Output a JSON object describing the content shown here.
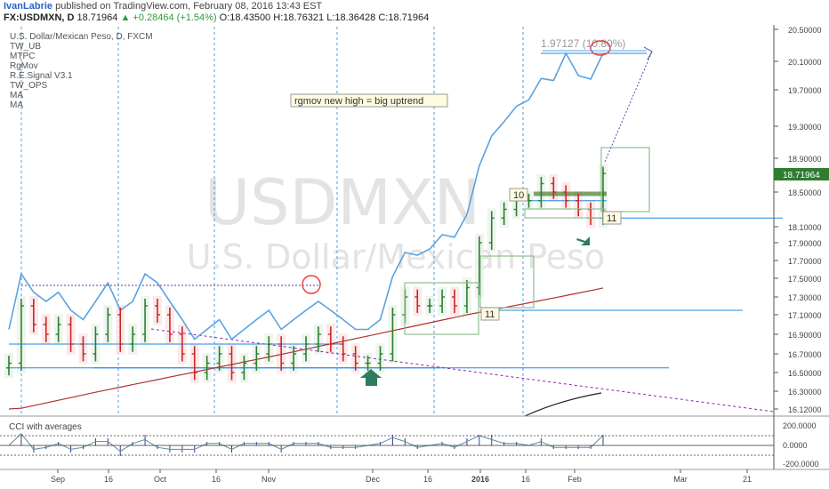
{
  "header": {
    "author": "IvanLabrie",
    "published_text": "published on TradingView.com, February 08, 2016 13:43 EST",
    "symbol": "FX:USDMXN, D",
    "last": "18.71964",
    "change": "+0.28464 (+1.54%)",
    "open_label": "O:",
    "open": "18.43500",
    "high_label": "H:",
    "high": "18.76321",
    "low_label": "L:",
    "low": "18.36428",
    "close_label": "C:",
    "close": "18.71964"
  },
  "indicators": [
    "U.S. Dollar/Mexican Peso, D, FXCM",
    "TW_UB",
    "MTPC",
    "RgMov",
    "R.E.Signal V3.1",
    "TW_OPS",
    "MA",
    "MA"
  ],
  "watermark": {
    "symbol": "USDMXN",
    "name": "U.S. Dollar/Mexican Peso"
  },
  "annotations": {
    "rgmov_note": "rgmov new high = big uptrend",
    "target_label": "1.97127 (10.80%)",
    "box_10": "10",
    "box_11a": "11",
    "box_11b": "11"
  },
  "cci_label": "CCI with averages",
  "colors": {
    "up": "#2e7d32",
    "down": "#c62828",
    "rgmov": "#5aa2e0",
    "ma": "#b03030",
    "grid": "#1e88e5",
    "axis": "#555555"
  },
  "chart_data": {
    "type": "ohlc",
    "price_axis": {
      "ticks": [
        "20.50000",
        "20.10000",
        "19.70000",
        "19.30000",
        "18.90000",
        "18.50000",
        "18.10000",
        "17.90000",
        "17.70000",
        "17.50000",
        "17.30000",
        "17.10000",
        "16.90000",
        "16.70000",
        "16.50000",
        "16.30000",
        "16.12000"
      ],
      "last_price": "18.71964"
    },
    "cci_axis": {
      "ticks": [
        "200.0000",
        "0.0000",
        "-200.0000"
      ]
    },
    "time_axis": [
      "Sep",
      "16",
      "Oct",
      "16",
      "Nov",
      "Dec",
      "16",
      "2016",
      "16",
      "Feb",
      "Mar",
      "21"
    ],
    "close_series": [
      16.6,
      17.2,
      17.0,
      16.9,
      17.0,
      16.8,
      16.7,
      16.9,
      17.1,
      16.8,
      16.9,
      17.2,
      17.1,
      16.9,
      16.7,
      16.5,
      16.6,
      16.7,
      16.5,
      16.6,
      16.7,
      16.8,
      16.6,
      16.7,
      16.8,
      16.9,
      16.8,
      16.7,
      16.6,
      16.6,
      16.7,
      17.1,
      17.3,
      17.2,
      17.2,
      17.3,
      17.2,
      17.4,
      17.9,
      18.2,
      18.3,
      18.4,
      18.4,
      18.6,
      18.5,
      18.4,
      18.3,
      18.2,
      18.72
    ],
    "horizontal_levels": [
      20.2,
      18.4,
      18.2,
      17.15,
      16.55,
      16.8,
      17.18
    ]
  }
}
